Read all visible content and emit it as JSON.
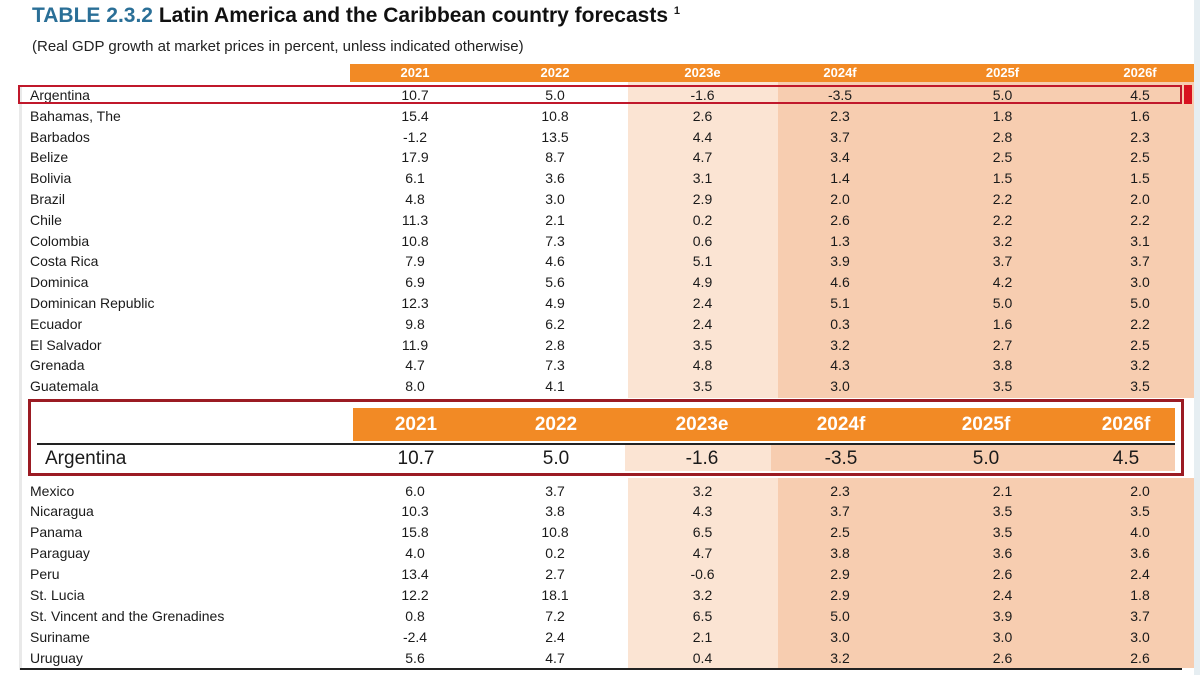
{
  "title": {
    "label": "TABLE 2.3.2",
    "text": "Latin America and the Caribbean country forecasts",
    "footnote": "1"
  },
  "subtitle": "(Real GDP growth at market prices in percent, unless indicated otherwise)",
  "columns": [
    "2021",
    "2022",
    "2023e",
    "2024f",
    "2025f",
    "2026f"
  ],
  "rows_top": [
    {
      "country": "Argentina",
      "v": [
        "10.7",
        "5.0",
        "-1.6",
        "-3.5",
        "5.0",
        "4.5"
      ]
    },
    {
      "country": "Bahamas, The",
      "v": [
        "15.4",
        "10.8",
        "2.6",
        "2.3",
        "1.8",
        "1.6"
      ]
    },
    {
      "country": "Barbados",
      "v": [
        "-1.2",
        "13.5",
        "4.4",
        "3.7",
        "2.8",
        "2.3"
      ]
    },
    {
      "country": "Belize",
      "v": [
        "17.9",
        "8.7",
        "4.7",
        "3.4",
        "2.5",
        "2.5"
      ]
    },
    {
      "country": "Bolivia",
      "v": [
        "6.1",
        "3.6",
        "3.1",
        "1.4",
        "1.5",
        "1.5"
      ]
    },
    {
      "country": "Brazil",
      "v": [
        "4.8",
        "3.0",
        "2.9",
        "2.0",
        "2.2",
        "2.0"
      ]
    },
    {
      "country": "Chile",
      "v": [
        "11.3",
        "2.1",
        "0.2",
        "2.6",
        "2.2",
        "2.2"
      ]
    },
    {
      "country": "Colombia",
      "v": [
        "10.8",
        "7.3",
        "0.6",
        "1.3",
        "3.2",
        "3.1"
      ]
    },
    {
      "country": "Costa Rica",
      "v": [
        "7.9",
        "4.6",
        "5.1",
        "3.9",
        "3.7",
        "3.7"
      ]
    },
    {
      "country": "Dominica",
      "v": [
        "6.9",
        "5.6",
        "4.9",
        "4.6",
        "4.2",
        "3.0"
      ]
    },
    {
      "country": "Dominican Republic",
      "v": [
        "12.3",
        "4.9",
        "2.4",
        "5.1",
        "5.0",
        "5.0"
      ]
    },
    {
      "country": "Ecuador",
      "v": [
        "9.8",
        "6.2",
        "2.4",
        "0.3",
        "1.6",
        "2.2"
      ]
    },
    {
      "country": "El Salvador",
      "v": [
        "11.9",
        "2.8",
        "3.5",
        "3.2",
        "2.7",
        "2.5"
      ]
    },
    {
      "country": "Grenada",
      "v": [
        "4.7",
        "7.3",
        "4.8",
        "4.3",
        "3.8",
        "3.2"
      ]
    },
    {
      "country": "Guatemala",
      "v": [
        "8.0",
        "4.1",
        "3.5",
        "3.0",
        "3.5",
        "3.5"
      ]
    }
  ],
  "inset": {
    "columns": [
      "2021",
      "2022",
      "2023e",
      "2024f",
      "2025f",
      "2026f"
    ],
    "country": "Argentina",
    "v": [
      "10.7",
      "5.0",
      "-1.6",
      "-3.5",
      "5.0",
      "4.5"
    ]
  },
  "rows_bottom": [
    {
      "country": "Mexico",
      "v": [
        "6.0",
        "3.7",
        "3.2",
        "2.3",
        "2.1",
        "2.0"
      ]
    },
    {
      "country": "Nicaragua",
      "v": [
        "10.3",
        "3.8",
        "4.3",
        "3.7",
        "3.5",
        "3.5"
      ]
    },
    {
      "country": "Panama",
      "v": [
        "15.8",
        "10.8",
        "6.5",
        "2.5",
        "3.5",
        "4.0"
      ]
    },
    {
      "country": "Paraguay",
      "v": [
        "4.0",
        "0.2",
        "4.7",
        "3.8",
        "3.6",
        "3.6"
      ]
    },
    {
      "country": "Peru",
      "v": [
        "13.4",
        "2.7",
        "-0.6",
        "2.9",
        "2.6",
        "2.4"
      ]
    },
    {
      "country": "St. Lucia",
      "v": [
        "12.2",
        "18.1",
        "3.2",
        "2.9",
        "2.4",
        "1.8"
      ]
    },
    {
      "country": "St. Vincent and the Grenadines",
      "v": [
        "0.8",
        "7.2",
        "6.5",
        "5.0",
        "3.9",
        "3.7"
      ]
    },
    {
      "country": "Suriname",
      "v": [
        "-2.4",
        "2.4",
        "2.1",
        "3.0",
        "3.0",
        "3.0"
      ]
    },
    {
      "country": "Uruguay",
      "v": [
        "5.6",
        "4.7",
        "0.4",
        "3.2",
        "2.6",
        "2.6"
      ]
    }
  ],
  "colors": {
    "header": "#f28a25",
    "shade_2023e": "#fbe4d3",
    "shade_forecast": "#f7cdb0",
    "highlight": "#c0182b"
  }
}
